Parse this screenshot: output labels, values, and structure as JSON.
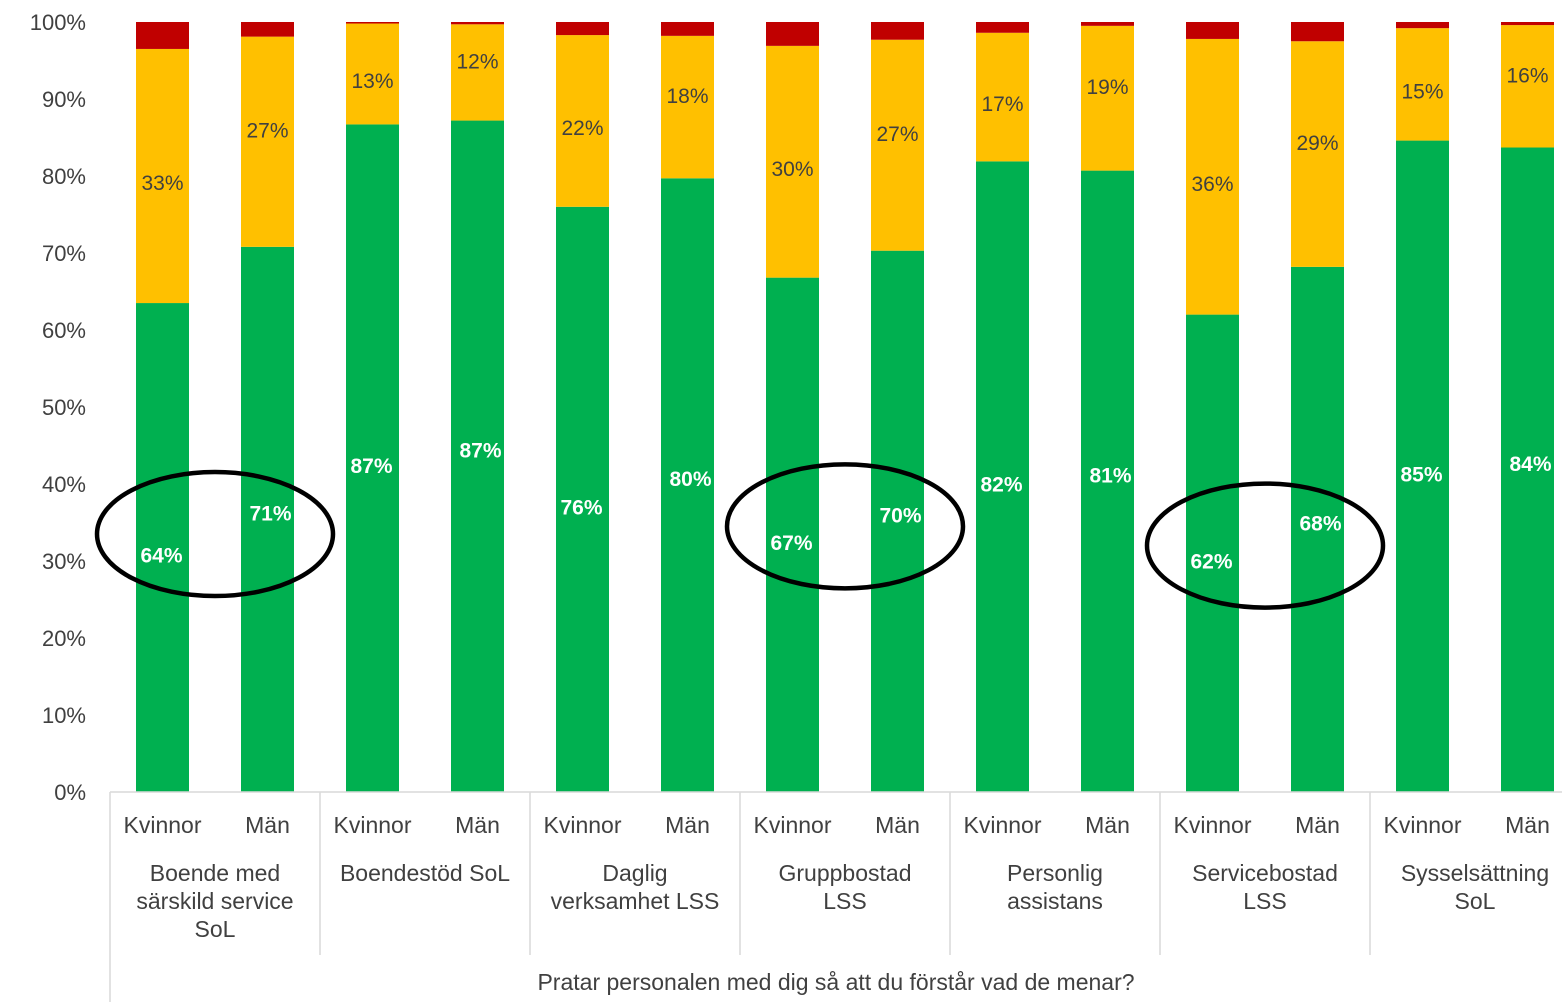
{
  "chart_data": {
    "type": "bar",
    "stacked": true,
    "xlabel": "Pratar personalen med dig så att du förstår vad de menar?",
    "ylim": [
      0,
      100
    ],
    "y_ticks": [
      "0%",
      "10%",
      "20%",
      "30%",
      "40%",
      "50%",
      "60%",
      "70%",
      "80%",
      "90%",
      "100%"
    ],
    "grid": false,
    "legend": "none",
    "groups": [
      {
        "label": "Boende med särskild service SoL",
        "lines": [
          "Boende med",
          "särskild service",
          "SoL"
        ]
      },
      {
        "label": "Boendestöd SoL",
        "lines": [
          "Boendestöd SoL"
        ]
      },
      {
        "label": "Daglig verksamhet LSS",
        "lines": [
          "Daglig",
          "verksamhet LSS"
        ]
      },
      {
        "label": "Gruppbostad LSS",
        "lines": [
          "Gruppbostad",
          "LSS"
        ]
      },
      {
        "label": "Personlig assistans",
        "lines": [
          "Personlig",
          "assistans"
        ]
      },
      {
        "label": "Servicebostad LSS",
        "lines": [
          "Servicebostad",
          "LSS"
        ]
      },
      {
        "label": "Sysselsättning SoL",
        "lines": [
          "Sysselsättning",
          "SoL"
        ]
      }
    ],
    "categories": [
      "Kvinnor",
      "Män",
      "Kvinnor",
      "Män",
      "Kvinnor",
      "Män",
      "Kvinnor",
      "Män",
      "Kvinnor",
      "Män",
      "Kvinnor",
      "Män",
      "Kvinnor",
      "Män"
    ],
    "series": [
      {
        "color": "#00b050",
        "values": [
          63.5,
          70.8,
          86.7,
          87.2,
          76.0,
          79.7,
          66.8,
          70.3,
          81.9,
          80.7,
          62.0,
          68.2,
          84.6,
          83.7
        ]
      },
      {
        "color": "#ffc000",
        "values": [
          33.0,
          27.3,
          13.1,
          12.5,
          22.3,
          18.5,
          30.1,
          27.4,
          16.7,
          18.8,
          35.8,
          29.3,
          14.6,
          15.9
        ]
      },
      {
        "color": "#c00000",
        "values": [
          3.5,
          1.9,
          0.2,
          0.3,
          1.7,
          1.8,
          3.1,
          2.3,
          1.4,
          0.5,
          2.2,
          2.5,
          0.8,
          0.4
        ]
      }
    ],
    "data_labels": {
      "green": [
        "64%",
        "71%",
        "87%",
        "87%",
        "76%",
        "80%",
        "67%",
        "70%",
        "82%",
        "81%",
        "62%",
        "68%",
        "85%",
        "84%"
      ],
      "yellow": [
        "33%",
        "27%",
        "13%",
        "12%",
        "22%",
        "18%",
        "30%",
        "27%",
        "17%",
        "19%",
        "36%",
        "29%",
        "15%",
        "16%"
      ]
    },
    "annotations": [
      {
        "type": "ellipse",
        "group": "Boende med särskild service SoL",
        "y_center": 33.5
      },
      {
        "type": "ellipse",
        "group": "Gruppbostad LSS",
        "y_center": 34.5
      },
      {
        "type": "ellipse",
        "group": "Servicebostad LSS",
        "y_center": 32
      }
    ]
  }
}
